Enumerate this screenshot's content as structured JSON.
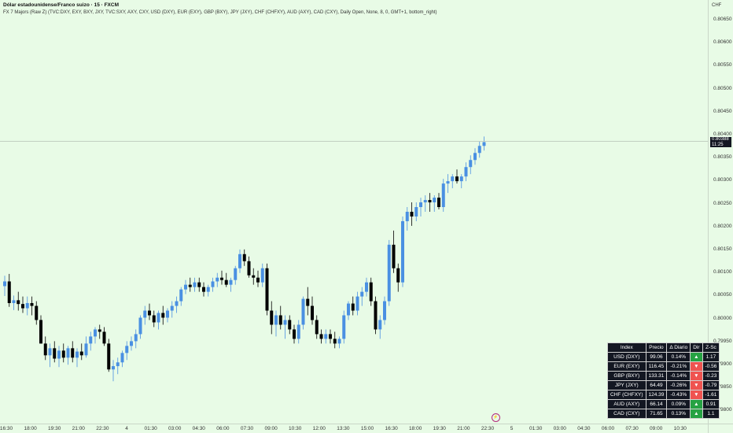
{
  "header": {
    "title": "Dólar estadounidense/Franco suizo · 15 · FXCM",
    "indicator": "FX 7 Majors (Raw Z) (TVC:DXY, EXY, BXY, JXY, TVC:SXY, AXY, CXY, USD (DXY), EUR (EXY), GBP (BXY), JPY (JXY), CHF (CHFXY), AUD (AXY), CAD (CXY), Daily Open, None, 8, 0, GMT+1, bottom_right)"
  },
  "symbol_tag": "CHF",
  "price_badge": {
    "price": "0.80388",
    "countdown": "11:25"
  },
  "price_scale": [
    "0.80650",
    "0.80600",
    "0.80550",
    "0.80500",
    "0.80450",
    "0.80400",
    "0.80350",
    "0.80300",
    "0.80250",
    "0.80200",
    "0.80150",
    "0.80100",
    "0.80050",
    "0.80000",
    "0.79950",
    "0.79900",
    "0.79850",
    "0.79800"
  ],
  "time_axis": [
    "16:30",
    "18:00",
    "19:30",
    "21:00",
    "22:30",
    "4",
    "01:30",
    "03:00",
    "04:30",
    "06:00",
    "07:30",
    "09:00",
    "10:30",
    "12:00",
    "13:30",
    "15:00",
    "16:30",
    "18:00",
    "19:30",
    "21:00",
    "22:30",
    "5",
    "01:30",
    "03:00",
    "04:30",
    "06:00",
    "07:30",
    "09:00",
    "10:30"
  ],
  "marker": "⚡",
  "table": {
    "headers": [
      "Index",
      "Precio",
      "Δ Diario",
      "Dir",
      "Z-Sc"
    ],
    "rows": [
      {
        "index": "USD (DXY)",
        "price": "99.06",
        "change": "0.14%",
        "dir": "▲",
        "dir_class": "up",
        "z": "1.17"
      },
      {
        "index": "EUR (EXY)",
        "price": "116.45",
        "change": "-0.21%",
        "dir": "▼",
        "dir_class": "down",
        "z": "-0.56"
      },
      {
        "index": "GBP (BXY)",
        "price": "133.31",
        "change": "-0.14%",
        "dir": "▼",
        "dir_class": "down",
        "z": "-0.23"
      },
      {
        "index": "JPY (JXY)",
        "price": "64.49",
        "change": "-0.26%",
        "dir": "▼",
        "dir_class": "down",
        "z": "-0.79"
      },
      {
        "index": "CHF (CHFXY)",
        "price": "124.39",
        "change": "-0.43%",
        "dir": "▼",
        "dir_class": "down",
        "z": "-1.61"
      },
      {
        "index": "AUD (AXY)",
        "price": "66.14",
        "change": "0.09%",
        "dir": "▲",
        "dir_class": "up",
        "z": "0.91"
      },
      {
        "index": "CAD (CXY)",
        "price": "71.65",
        "change": "0.13%",
        "dir": "▲",
        "dir_class": "up",
        "z": "1.1"
      }
    ]
  },
  "colors": {
    "background": "#e8fbe6",
    "bull": "#4a90e2",
    "bear": "#000000",
    "up": "#26a243",
    "down": "#ef5350"
  },
  "chart_data": {
    "type": "candlestick",
    "candles": [
      [
        0.80082,
        0.80104,
        0.80061,
        0.80092
      ],
      [
        0.80092,
        0.80108,
        0.80038,
        0.80046
      ],
      [
        0.80046,
        0.80062,
        0.80031,
        0.80052
      ],
      [
        0.80052,
        0.8007,
        0.8003,
        0.80044
      ],
      [
        0.80044,
        0.8006,
        0.80025,
        0.80035
      ],
      [
        0.80035,
        0.8006,
        0.8002,
        0.80046
      ],
      [
        0.80046,
        0.8006,
        0.8002,
        0.8004
      ],
      [
        0.8004,
        0.8005,
        0.8,
        0.8001
      ],
      [
        0.8001,
        0.8002,
        0.7996,
        0.7996
      ],
      [
        0.7996,
        0.79975,
        0.79925,
        0.79935
      ],
      [
        0.79935,
        0.7996,
        0.7991,
        0.7995
      ],
      [
        0.7995,
        0.79965,
        0.7992,
        0.79928
      ],
      [
        0.79928,
        0.79955,
        0.7991,
        0.79945
      ],
      [
        0.79945,
        0.7996,
        0.7992,
        0.7993
      ],
      [
        0.7993,
        0.79955,
        0.79915,
        0.7995
      ],
      [
        0.7995,
        0.79965,
        0.7992,
        0.7993
      ],
      [
        0.7993,
        0.7995,
        0.7991,
        0.79943
      ],
      [
        0.79943,
        0.7996,
        0.79925,
        0.79935
      ],
      [
        0.79935,
        0.79975,
        0.7993,
        0.7996
      ],
      [
        0.7996,
        0.79985,
        0.79945,
        0.79975
      ],
      [
        0.79975,
        0.79995,
        0.7996,
        0.7999
      ],
      [
        0.7999,
        0.8,
        0.7997,
        0.79985
      ],
      [
        0.79985,
        0.79995,
        0.79955,
        0.7996
      ],
      [
        0.7996,
        0.7997,
        0.799,
        0.79905
      ],
      [
        0.79905,
        0.79925,
        0.7988,
        0.79912
      ],
      [
        0.79912,
        0.7993,
        0.79895,
        0.7992
      ],
      [
        0.7992,
        0.79945,
        0.7991,
        0.7994
      ],
      [
        0.7994,
        0.79965,
        0.79925,
        0.79955
      ],
      [
        0.79955,
        0.79975,
        0.79945,
        0.79965
      ],
      [
        0.79965,
        0.7999,
        0.7995,
        0.7998
      ],
      [
        0.7998,
        0.8002,
        0.7997,
        0.80015
      ],
      [
        0.80015,
        0.8004,
        0.8,
        0.8003
      ],
      [
        0.8003,
        0.80045,
        0.8001,
        0.8002
      ],
      [
        0.8002,
        0.8003,
        0.79995,
        0.80005
      ],
      [
        0.80005,
        0.8003,
        0.7999,
        0.80025
      ],
      [
        0.80025,
        0.8004,
        0.8,
        0.80015
      ],
      [
        0.80015,
        0.80035,
        0.80005,
        0.8003
      ],
      [
        0.8003,
        0.8005,
        0.80015,
        0.8004
      ],
      [
        0.8004,
        0.8006,
        0.80025,
        0.8005
      ],
      [
        0.8005,
        0.8008,
        0.8004,
        0.80075
      ],
      [
        0.80075,
        0.80095,
        0.80065,
        0.80085
      ],
      [
        0.80085,
        0.801,
        0.8007,
        0.8008
      ],
      [
        0.8008,
        0.801,
        0.8007,
        0.8009
      ],
      [
        0.8009,
        0.801,
        0.8007,
        0.8008
      ],
      [
        0.8008,
        0.8009,
        0.8006,
        0.8007
      ],
      [
        0.8007,
        0.80085,
        0.8006,
        0.8008
      ],
      [
        0.8008,
        0.801,
        0.8007,
        0.80092
      ],
      [
        0.80092,
        0.8011,
        0.8008,
        0.801
      ],
      [
        0.801,
        0.80115,
        0.80085,
        0.80095
      ],
      [
        0.80095,
        0.8011,
        0.8008,
        0.80085
      ],
      [
        0.80085,
        0.801,
        0.8007,
        0.80095
      ],
      [
        0.80095,
        0.80125,
        0.80085,
        0.8012
      ],
      [
        0.8012,
        0.8016,
        0.8011,
        0.8015
      ],
      [
        0.8015,
        0.8016,
        0.80125,
        0.80135
      ],
      [
        0.80135,
        0.80145,
        0.801,
        0.80105
      ],
      [
        0.80105,
        0.8012,
        0.80085,
        0.801
      ],
      [
        0.801,
        0.80115,
        0.8008,
        0.8009
      ],
      [
        0.8009,
        0.8013,
        0.8008,
        0.8012
      ],
      [
        0.8012,
        0.8013,
        0.8002,
        0.8003
      ],
      [
        0.8003,
        0.8005,
        0.7998,
        0.8
      ],
      [
        0.8,
        0.8003,
        0.79975,
        0.8002
      ],
      [
        0.8002,
        0.8004,
        0.7999,
        0.8
      ],
      [
        0.8,
        0.8002,
        0.7997,
        0.8001
      ],
      [
        0.8001,
        0.8002,
        0.7998,
        0.7999
      ],
      [
        0.7999,
        0.8,
        0.7996,
        0.7997
      ],
      [
        0.7997,
        0.8001,
        0.7996,
        0.8
      ],
      [
        0.8,
        0.8006,
        0.7999,
        0.80055
      ],
      [
        0.80055,
        0.8008,
        0.8002,
        0.8004
      ],
      [
        0.8004,
        0.8006,
        0.8,
        0.8001
      ],
      [
        0.8001,
        0.8002,
        0.7997,
        0.7998
      ],
      [
        0.7998,
        0.7999,
        0.7996,
        0.7997
      ],
      [
        0.7997,
        0.7999,
        0.7996,
        0.7998
      ],
      [
        0.7998,
        0.7999,
        0.7996,
        0.7997
      ],
      [
        0.7997,
        0.79985,
        0.7995,
        0.7996
      ],
      [
        0.7996,
        0.79975,
        0.7995,
        0.7997
      ],
      [
        0.7997,
        0.8003,
        0.7996,
        0.8002
      ],
      [
        0.8002,
        0.8005,
        0.8001,
        0.80045
      ],
      [
        0.80045,
        0.8006,
        0.8002,
        0.8003
      ],
      [
        0.8003,
        0.8007,
        0.8002,
        0.8006
      ],
      [
        0.8006,
        0.8008,
        0.8004,
        0.8007
      ],
      [
        0.8007,
        0.801,
        0.8006,
        0.8009
      ],
      [
        0.8009,
        0.801,
        0.8004,
        0.8005
      ],
      [
        0.8005,
        0.8006,
        0.7998,
        0.7999
      ],
      [
        0.7999,
        0.8002,
        0.7997,
        0.8001
      ],
      [
        0.8001,
        0.8006,
        0.8,
        0.8005
      ],
      [
        0.8005,
        0.8018,
        0.8004,
        0.8017
      ],
      [
        0.8017,
        0.802,
        0.8011,
        0.8012
      ],
      [
        0.8012,
        0.8013,
        0.8007,
        0.8009
      ],
      [
        0.8009,
        0.8023,
        0.8008,
        0.8022
      ],
      [
        0.8022,
        0.8025,
        0.802,
        0.8024
      ],
      [
        0.8024,
        0.8026,
        0.8021,
        0.8023
      ],
      [
        0.8023,
        0.8026,
        0.8022,
        0.8025
      ],
      [
        0.8025,
        0.8027,
        0.8023,
        0.8026
      ],
      [
        0.8026,
        0.80275,
        0.8024,
        0.80265
      ],
      [
        0.80265,
        0.8028,
        0.8024,
        0.8026
      ],
      [
        0.8026,
        0.80275,
        0.8024,
        0.8027
      ],
      [
        0.8027,
        0.8028,
        0.80245,
        0.8025
      ],
      [
        0.8025,
        0.8031,
        0.8024,
        0.803
      ],
      [
        0.803,
        0.8032,
        0.8028,
        0.80305
      ],
      [
        0.80305,
        0.8032,
        0.8029,
        0.80315
      ],
      [
        0.80315,
        0.8033,
        0.803,
        0.80305
      ],
      [
        0.80305,
        0.8032,
        0.8029,
        0.80315
      ],
      [
        0.80315,
        0.80345,
        0.80305,
        0.80335
      ],
      [
        0.80335,
        0.8036,
        0.8032,
        0.8035
      ],
      [
        0.8035,
        0.80375,
        0.8034,
        0.80365
      ],
      [
        0.80365,
        0.8039,
        0.80355,
        0.8038
      ],
      [
        0.8038,
        0.804,
        0.8037,
        0.80388
      ]
    ],
    "ylim": [
      0.7979,
      0.8069
    ]
  }
}
